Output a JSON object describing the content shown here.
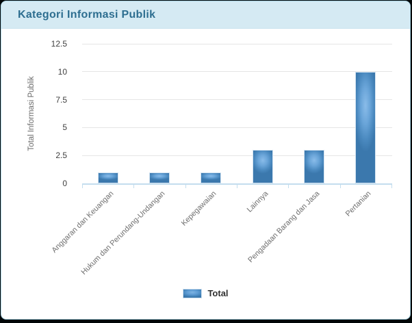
{
  "card": {
    "title": "Kategori Informasi Publik",
    "header_bg": "#d5eaf3",
    "title_color": "#2d6e90",
    "border_color": "#a9d4e4"
  },
  "chart_data": {
    "type": "bar",
    "title": "Kategori Informasi Publik",
    "categories": [
      "Anggaran dan Keuangan",
      "Hukum dan Perundang-Undangan",
      "Kepegawaian",
      "Lainnya",
      "Pengadaan Barang dan Jasa",
      "Pertanian"
    ],
    "series": [
      {
        "name": "Total",
        "values": [
          1,
          1,
          1,
          3,
          3,
          10
        ]
      }
    ],
    "xlabel": "",
    "ylabel": "Total Informasi Publik",
    "y_ticks": [
      "0",
      "2.5",
      "5",
      "7.5",
      "10",
      "12.5"
    ],
    "ylim": [
      0,
      12.5
    ],
    "grid": true,
    "legend_position": "bottom",
    "colors": {
      "bar_highlight": "#8abce9",
      "bar_mid": "#5e9cd4",
      "bar_edge": "#3a77ac",
      "bar_border": "#d3e3f1",
      "axis_line": "#c3ddee",
      "gridline": "#e5e5e5",
      "y_tick_label": "#3f3f3f",
      "category_label": "#6f6f6f"
    }
  },
  "legend": {
    "label": "Total"
  }
}
